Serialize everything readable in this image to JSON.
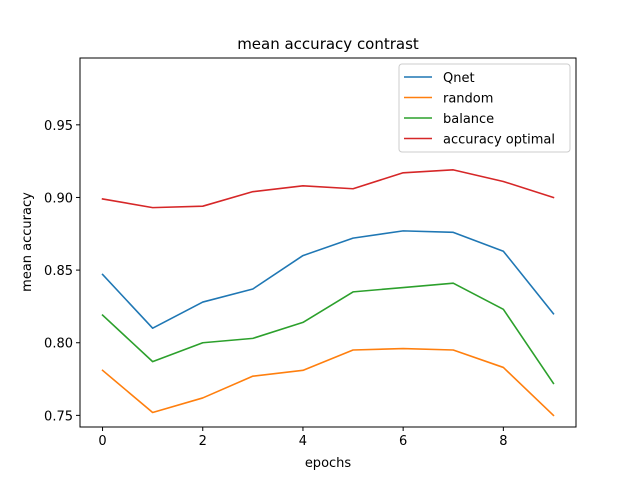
{
  "chart_data": {
    "type": "line",
    "title": "mean accuracy contrast",
    "xlabel": "epochs",
    "ylabel": "mean accuracy",
    "x": [
      0,
      1,
      2,
      3,
      4,
      5,
      6,
      7,
      8,
      9
    ],
    "xlim": [
      -0.45,
      9.45
    ],
    "ylim": [
      0.742,
      0.996
    ],
    "xticks": [
      0,
      2,
      4,
      6,
      8
    ],
    "yticks": [
      0.75,
      0.8,
      0.85,
      0.9,
      0.95
    ],
    "ytick_labels": [
      "0.75",
      "0.80",
      "0.85",
      "0.90",
      "0.95"
    ],
    "grid": false,
    "legend_position": "top-right",
    "series": [
      {
        "name": "Qnet",
        "color": "#1f77b4",
        "values": [
          0.847,
          0.81,
          0.828,
          0.837,
          0.86,
          0.872,
          0.877,
          0.876,
          0.863,
          0.82
        ]
      },
      {
        "name": "random",
        "color": "#ff7f0e",
        "values": [
          0.781,
          0.752,
          0.762,
          0.777,
          0.781,
          0.795,
          0.796,
          0.795,
          0.783,
          0.75
        ]
      },
      {
        "name": "balance",
        "color": "#2ca02c",
        "values": [
          0.819,
          0.787,
          0.8,
          0.803,
          0.814,
          0.835,
          0.838,
          0.841,
          0.823,
          0.772
        ]
      },
      {
        "name": "accuracy optimal",
        "color": "#d62728",
        "values": [
          0.899,
          0.893,
          0.894,
          0.904,
          0.908,
          0.906,
          0.917,
          0.919,
          0.911,
          0.9
        ]
      }
    ]
  }
}
